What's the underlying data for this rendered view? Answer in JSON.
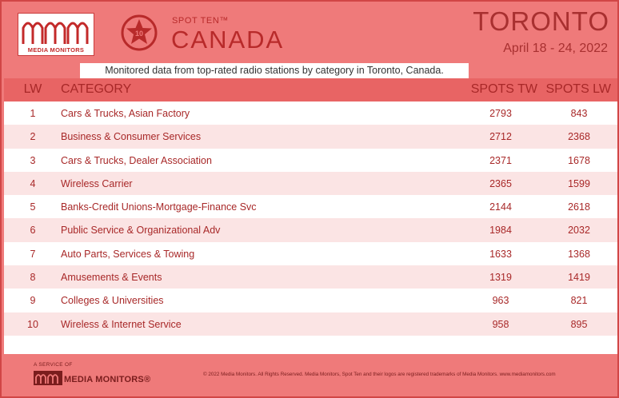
{
  "brand": {
    "logo_text": "MEDIA MONITORS",
    "badge_number": "10",
    "spot_ten": "SPOT TEN™",
    "market_country": "CANADA"
  },
  "header": {
    "city": "TORONTO",
    "dates": "April 18 - 24, 2022",
    "subtitle": "Monitored data from top-rated radio stations by category in Toronto, Canada."
  },
  "table": {
    "columns": [
      "LW",
      "CATEGORY",
      "SPOTS TW",
      "SPOTS LW"
    ],
    "rows": [
      {
        "lw": "1",
        "category": "Cars & Trucks, Asian Factory",
        "spots_tw": "2793",
        "spots_lw": "843"
      },
      {
        "lw": "2",
        "category": "Business & Consumer Services",
        "spots_tw": "2712",
        "spots_lw": "2368"
      },
      {
        "lw": "3",
        "category": "Cars & Trucks, Dealer Association",
        "spots_tw": "2371",
        "spots_lw": "1678"
      },
      {
        "lw": "4",
        "category": "Wireless Carrier",
        "spots_tw": "2365",
        "spots_lw": "1599"
      },
      {
        "lw": "5",
        "category": "Banks-Credit Unions-Mortgage-Finance Svc",
        "spots_tw": "2144",
        "spots_lw": "2618"
      },
      {
        "lw": "6",
        "category": "Public Service & Organizational Adv",
        "spots_tw": "1984",
        "spots_lw": "2032"
      },
      {
        "lw": "7",
        "category": "Auto Parts, Services & Towing",
        "spots_tw": "1633",
        "spots_lw": "1368"
      },
      {
        "lw": "8",
        "category": "Amusements & Events",
        "spots_tw": "1319",
        "spots_lw": "1419"
      },
      {
        "lw": "9",
        "category": "Colleges & Universities",
        "spots_tw": "963",
        "spots_lw": "821"
      },
      {
        "lw": "10",
        "category": "Wireless & Internet Service",
        "spots_tw": "958",
        "spots_lw": "895"
      }
    ]
  },
  "footer": {
    "service_of": "A SERVICE OF",
    "logo_text": "MEDIA MONITORS",
    "registered": "®",
    "copyright": "© 2022 Media Monitors. All Rights Reserved. Media Monitors, Spot Ten and their logos are registered trademarks of Media Monitors. www.mediamonitors.com"
  },
  "colors": {
    "background": "#ef7a7a",
    "header_row": "#e86464",
    "text_red": "#a82828",
    "row_alt": "#fbe4e4"
  }
}
